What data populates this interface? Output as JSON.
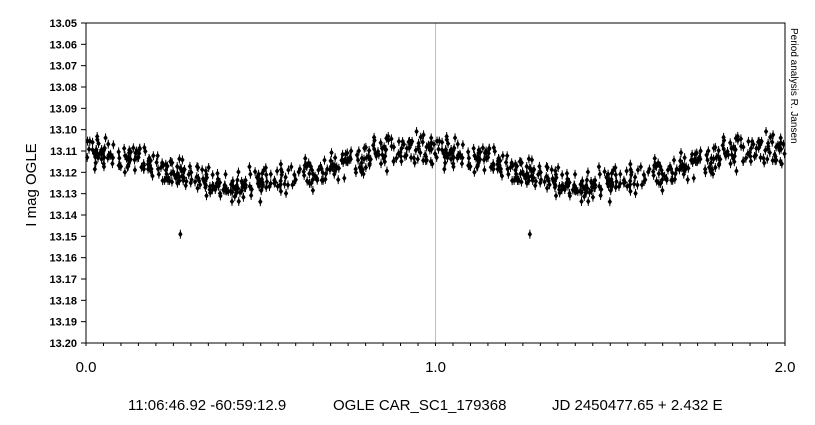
{
  "chart_data": {
    "type": "scatter",
    "title": "",
    "ylabel": "I mag OGLE",
    "xlabel": "",
    "xlim": [
      0.0,
      2.0
    ],
    "ylim": [
      13.05,
      13.2
    ],
    "y_inverted": true,
    "grid": "vertical line at 1.0",
    "x_tick_labels": [
      "0.0",
      "1.0",
      "2.0"
    ],
    "y_tick_labels": [
      "13.05",
      "13.06",
      "13.07",
      "13.08",
      "13.09",
      "13.10",
      "13.11",
      "13.12",
      "13.13",
      "13.14",
      "13.15",
      "13.16",
      "13.17",
      "13.18",
      "13.19",
      "13.20"
    ],
    "marker": "black diamonds with vertical error bars",
    "side_note": "Period analysis  R. Jansen",
    "series": [
      {
        "phase_curve": [
          [
            0.0,
            13.111
          ],
          [
            0.12,
            13.113
          ],
          [
            0.25,
            13.12
          ],
          [
            0.4,
            13.126
          ],
          [
            0.5,
            13.124
          ],
          [
            0.62,
            13.121
          ],
          [
            0.75,
            13.116
          ],
          [
            0.88,
            13.11
          ],
          [
            1.0,
            13.109
          ]
        ],
        "scatter_amplitude": 0.006,
        "outliers": [
          [
            0.27,
            13.149
          ],
          [
            1.27,
            13.149
          ]
        ],
        "points_per_cycle": 420
      }
    ]
  },
  "footer": {
    "coords": "11:06:46.92 -60:59:12.9",
    "name": "OGLE CAR_SC1_179368",
    "ephemeris": "JD 2450477.65 + 2.432 E"
  },
  "colors": {
    "marker": "#000000",
    "axis": "#000000",
    "grid": "#c0c0c0"
  }
}
